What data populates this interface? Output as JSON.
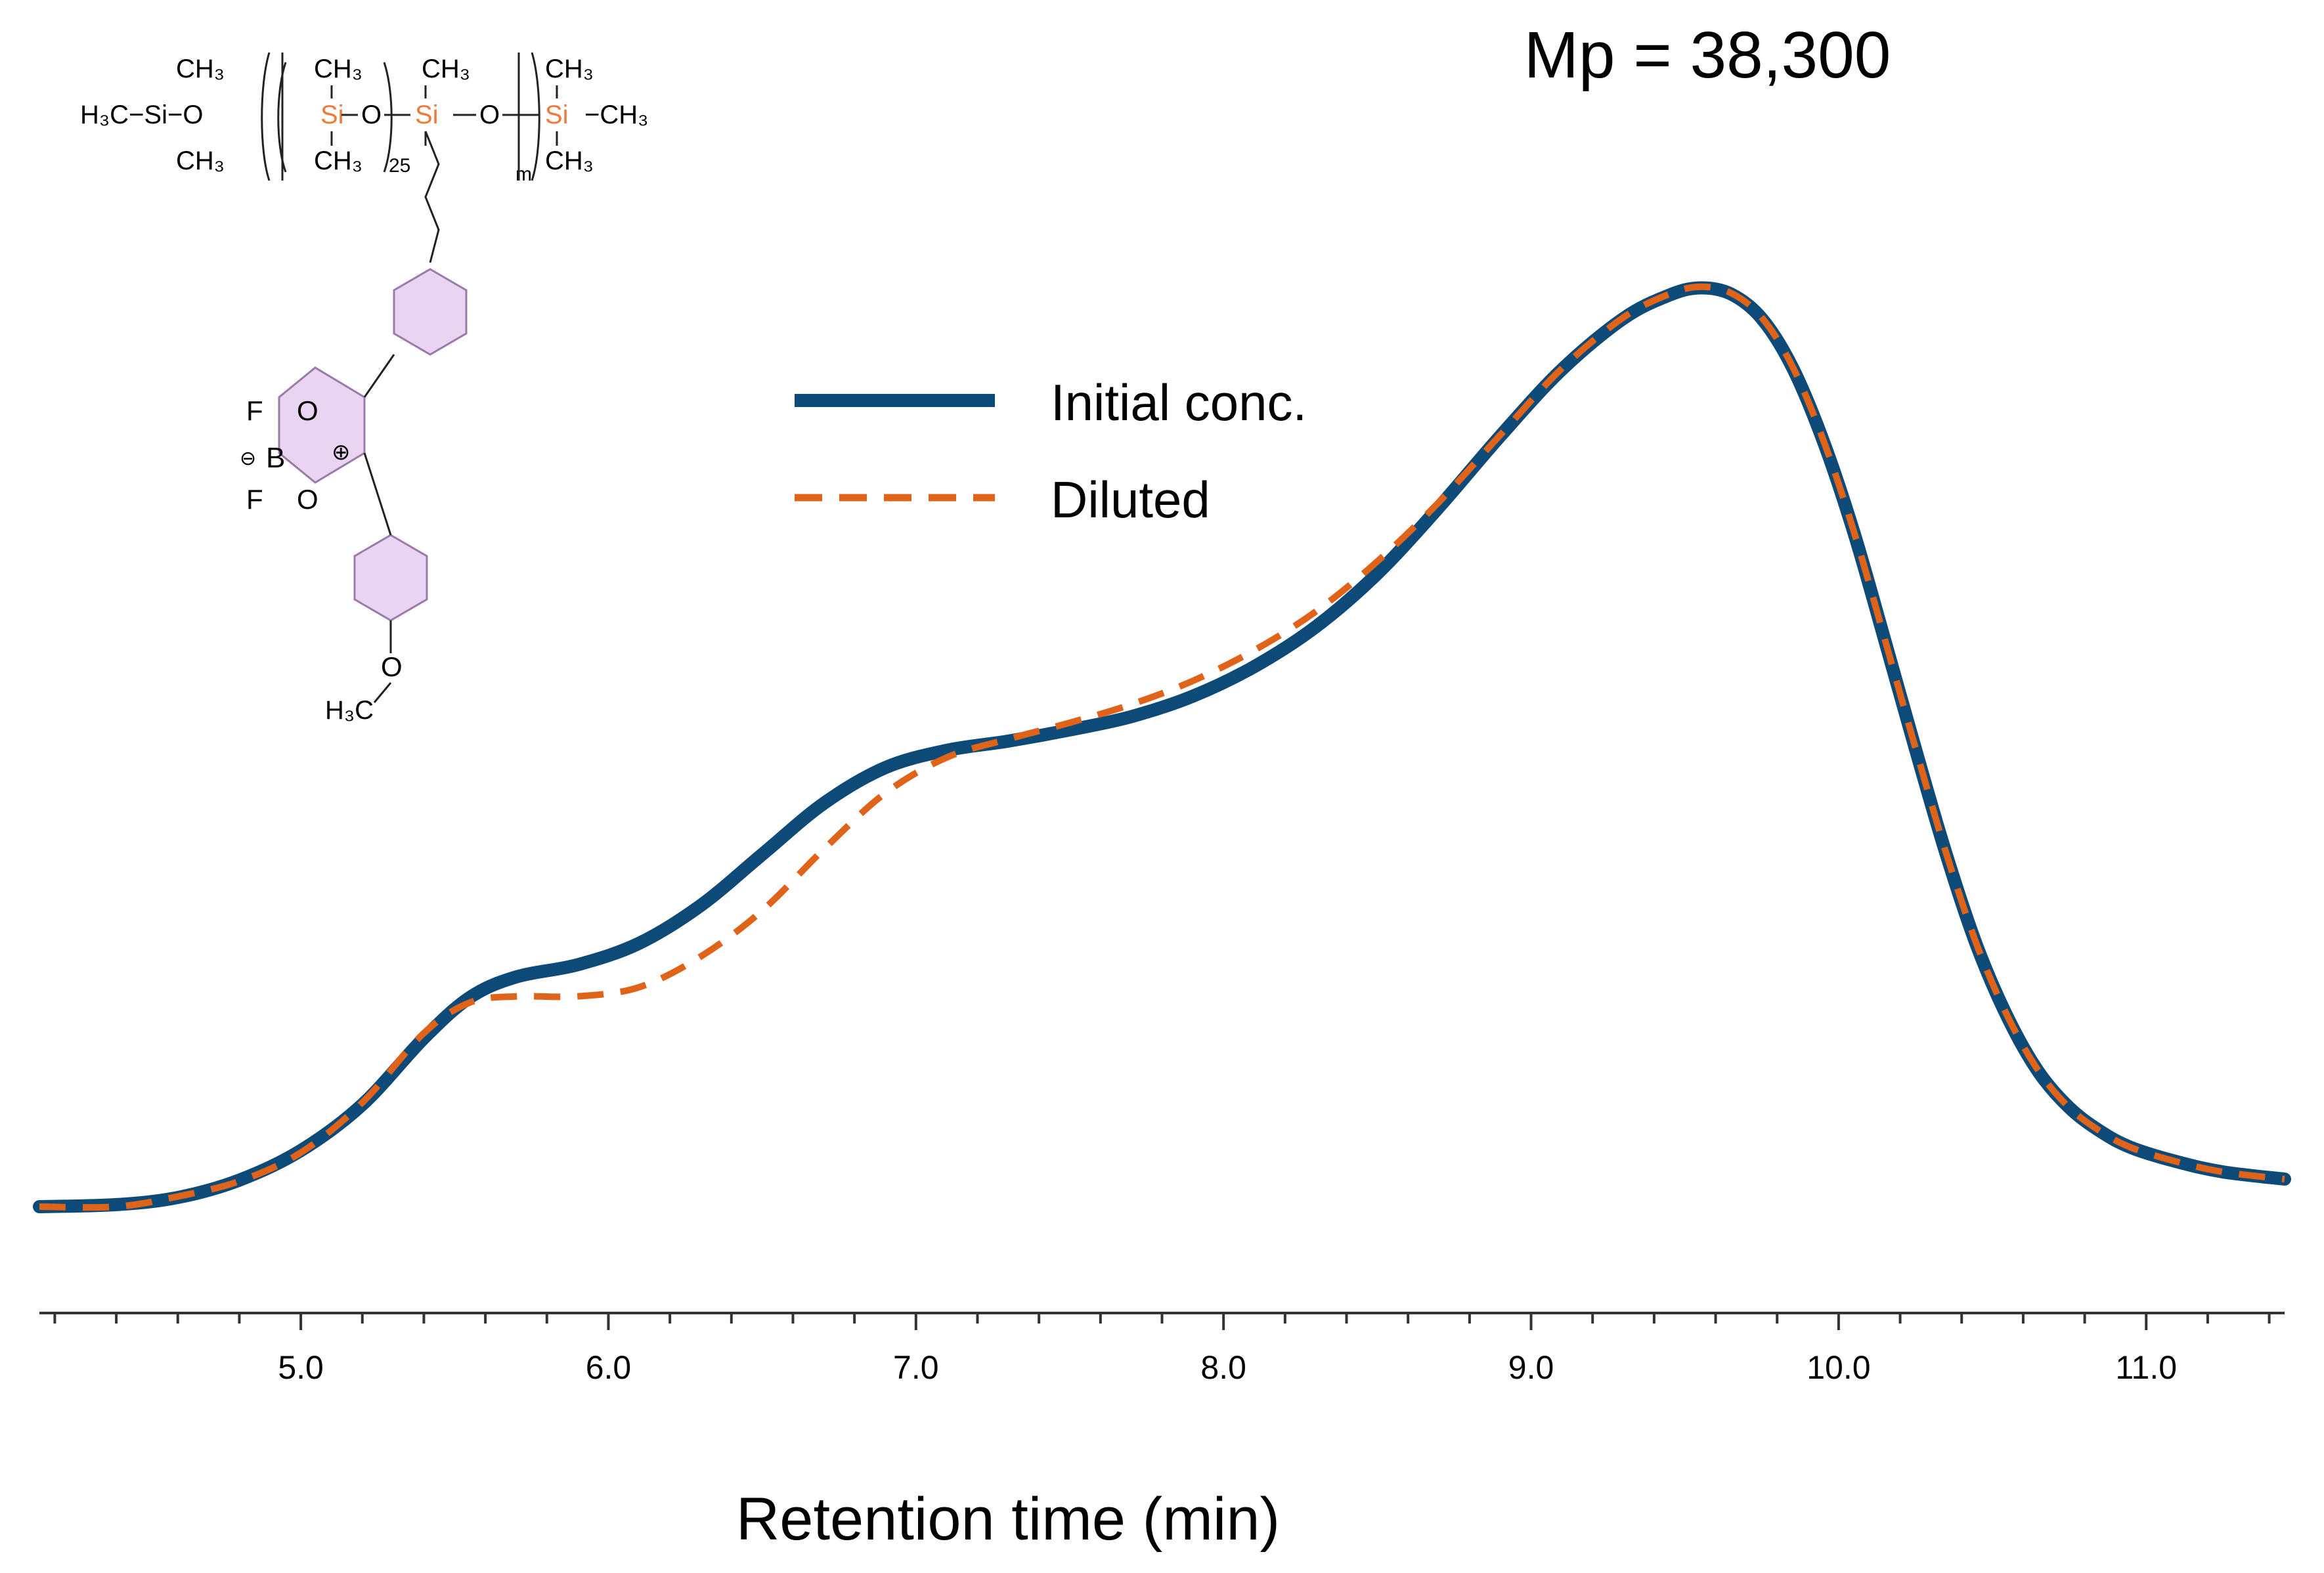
{
  "colors": {
    "initial": "#0e4a78",
    "diluted": "#e0631a",
    "axis": "#333333",
    "text": "#000000",
    "silicon": "#f07a3c",
    "ring_fill": "#e9d5f2",
    "ring_stroke": "#9a7aa8"
  },
  "structure": {
    "left_group": "H₃C−Si−O",
    "top_methyls": [
      "CH₃",
      "CH₃",
      "CH₃",
      "CH₃"
    ],
    "bottom_methyls": [
      "CH₃",
      "CH₃",
      "CH₃"
    ],
    "right_methyl": "−CH₃",
    "repeat_dp": "25",
    "repeat_m": "m",
    "si_label": "Si",
    "o_label": "O",
    "b_label": "B",
    "f_label": "F",
    "minus": "⊖",
    "plus": "⊕",
    "methoxy": "H₃C"
  },
  "chart_data": {
    "type": "line",
    "annotation": "Mp = 38,300",
    "xlabel": "Retention time (min)",
    "ylabel": "",
    "xlim": [
      4.15,
      11.45
    ],
    "ylim": [
      0,
      1.0
    ],
    "xticks": [
      5.0,
      6.0,
      7.0,
      8.0,
      9.0,
      10.0,
      11.0
    ],
    "xtick_labels": [
      "5.0",
      "6.0",
      "7.0",
      "8.0",
      "9.0",
      "10.0",
      "11.0"
    ],
    "minor_tick_step": 0.2,
    "legend": "upper-center",
    "grid": false,
    "series": [
      {
        "name": "Initial conc.",
        "style": "solid",
        "x": [
          4.15,
          4.4,
          4.6,
          4.8,
          5.0,
          5.2,
          5.4,
          5.55,
          5.7,
          5.9,
          6.1,
          6.3,
          6.5,
          6.7,
          6.9,
          7.1,
          7.3,
          7.5,
          7.7,
          7.9,
          8.1,
          8.3,
          8.5,
          8.7,
          8.9,
          9.1,
          9.3,
          9.45,
          9.55,
          9.65,
          9.75,
          9.85,
          9.95,
          10.05,
          10.15,
          10.25,
          10.35,
          10.45,
          10.55,
          10.65,
          10.75,
          10.85,
          10.95,
          11.1,
          11.25,
          11.45
        ],
        "y": [
          0.0,
          0.002,
          0.009,
          0.026,
          0.055,
          0.1,
          0.165,
          0.205,
          0.225,
          0.237,
          0.258,
          0.295,
          0.345,
          0.395,
          0.43,
          0.447,
          0.456,
          0.467,
          0.48,
          0.5,
          0.529,
          0.568,
          0.62,
          0.685,
          0.755,
          0.82,
          0.87,
          0.893,
          0.9,
          0.894,
          0.87,
          0.822,
          0.75,
          0.66,
          0.555,
          0.448,
          0.345,
          0.255,
          0.185,
          0.132,
          0.097,
          0.074,
          0.058,
          0.044,
          0.034,
          0.027
        ]
      },
      {
        "name": "Diluted",
        "style": "dashed",
        "x": [
          4.15,
          4.4,
          4.6,
          4.8,
          5.0,
          5.2,
          5.4,
          5.55,
          5.7,
          5.9,
          6.1,
          6.3,
          6.5,
          6.7,
          6.9,
          7.1,
          7.3,
          7.5,
          7.7,
          7.9,
          8.1,
          8.3,
          8.5,
          8.7,
          8.9,
          9.1,
          9.3,
          9.45,
          9.55,
          9.65,
          9.75,
          9.85,
          9.95,
          10.05,
          10.15,
          10.25,
          10.35,
          10.45,
          10.55,
          10.65,
          10.75,
          10.85,
          10.95,
          11.1,
          11.25,
          11.45
        ],
        "y": [
          0.0,
          0.0,
          0.01,
          0.025,
          0.053,
          0.102,
          0.17,
          0.2,
          0.206,
          0.206,
          0.215,
          0.245,
          0.29,
          0.35,
          0.405,
          0.44,
          0.458,
          0.474,
          0.492,
          0.515,
          0.545,
          0.583,
          0.632,
          0.69,
          0.756,
          0.821,
          0.871,
          0.894,
          0.901,
          0.895,
          0.871,
          0.823,
          0.751,
          0.661,
          0.556,
          0.449,
          0.346,
          0.256,
          0.186,
          0.133,
          0.097,
          0.074,
          0.058,
          0.044,
          0.034,
          0.027
        ]
      }
    ]
  }
}
